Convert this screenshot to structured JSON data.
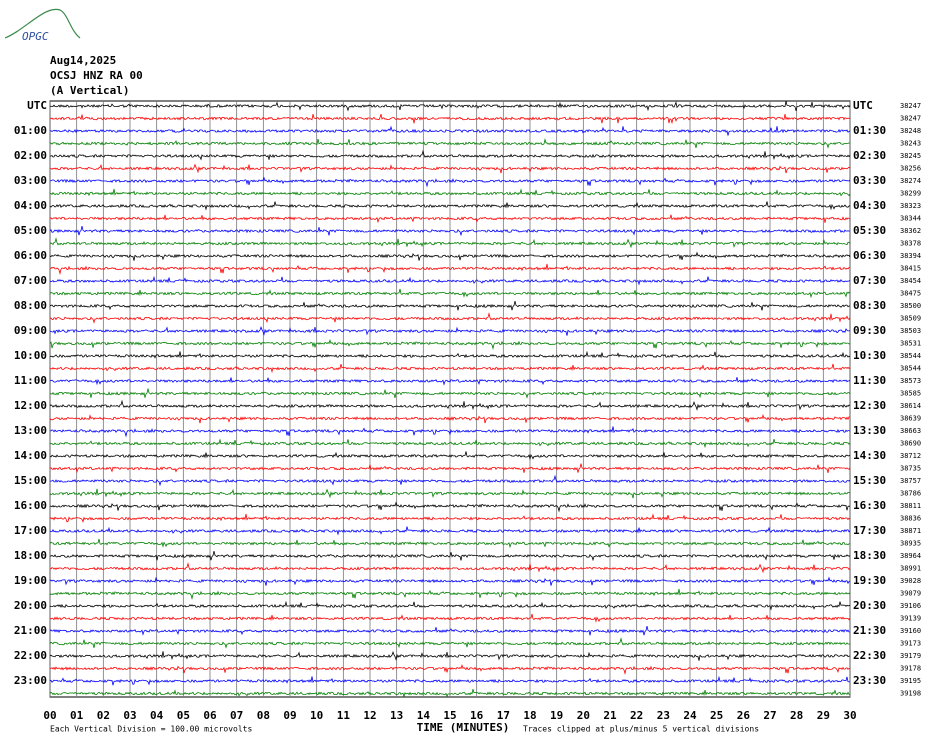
{
  "header": {
    "logo": "OPGC",
    "date": "Aug14,2025",
    "station": "OCSJ HNZ RA 00",
    "component": "(A Vertical)"
  },
  "left_labels": [
    "UTC",
    "01:00",
    "02:00",
    "03:00",
    "04:00",
    "05:00",
    "06:00",
    "07:00",
    "08:00",
    "09:00",
    "10:00",
    "11:00",
    "12:00",
    "13:00",
    "14:00",
    "15:00",
    "16:00",
    "17:00",
    "18:00",
    "19:00",
    "20:00",
    "21:00",
    "22:00",
    "23:00"
  ],
  "right_labels": [
    "UTC",
    "01:30",
    "02:30",
    "03:30",
    "04:30",
    "05:30",
    "06:30",
    "07:30",
    "08:30",
    "09:30",
    "10:30",
    "11:30",
    "12:30",
    "13:30",
    "14:30",
    "15:30",
    "16:30",
    "17:30",
    "18:30",
    "19:30",
    "20:30",
    "21:30",
    "22:30",
    "23:30"
  ],
  "trace_counts": [
    "38247",
    "38247",
    "38248",
    "38243",
    "38245",
    "38256",
    "38274",
    "38299",
    "38323",
    "38344",
    "38362",
    "38378",
    "38394",
    "38415",
    "38454",
    "38475",
    "38500",
    "38509",
    "38503",
    "38531",
    "38544",
    "38544",
    "38573",
    "38585",
    "38614",
    "38639",
    "38663",
    "38690",
    "38712",
    "38735",
    "38757",
    "38786",
    "38811",
    "38836",
    "38871",
    "38935",
    "38964",
    "38991",
    "39028",
    "39079",
    "39106",
    "39139",
    "39160",
    "39173",
    "39179",
    "39178",
    "39195",
    "39198"
  ],
  "trace_colors": [
    "#000000",
    "#ff0000",
    "#0000ff",
    "#008000"
  ],
  "x_ticks": [
    "00",
    "01",
    "02",
    "03",
    "04",
    "05",
    "06",
    "07",
    "08",
    "09",
    "10",
    "11",
    "12",
    "13",
    "14",
    "15",
    "16",
    "17",
    "18",
    "19",
    "20",
    "21",
    "22",
    "23",
    "24",
    "25",
    "26",
    "27",
    "28",
    "29",
    "30"
  ],
  "footer": {
    "scale_note": "Each Vertical Division =  100.00 microvolts",
    "x_title": "TIME (MINUTES)",
    "clip_note": "Traces clipped at plus/minus 5 vertical divisions"
  }
}
